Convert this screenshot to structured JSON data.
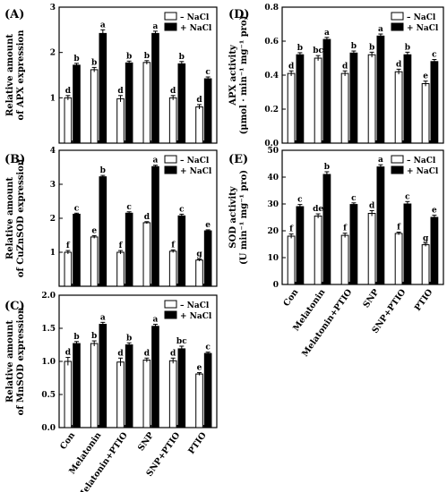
{
  "categories": [
    "Con",
    "Melatonin",
    "Melatonin+PTIO",
    "SNP",
    "SNP+PTIO",
    "PTIO"
  ],
  "legend": {
    "minus": "– NaCl",
    "plus": "+ NaCl"
  },
  "colors": {
    "minus": "#ffffff",
    "plus": "#000000",
    "stroke": "#000000"
  },
  "chart_data": [
    {
      "type": "bar",
      "panel_label": "(A)",
      "ylabel_lines": [
        "Relative amount",
        "of APX expression"
      ],
      "ylim": [
        0,
        3
      ],
      "yticks": [
        1,
        2,
        3
      ],
      "categories": [
        "Con",
        "Melatonin",
        "Melatonin+PTIO",
        "SNP",
        "SNP+PTIO",
        "PTIO"
      ],
      "series": [
        {
          "name": "– NaCl",
          "values": [
            1.0,
            1.62,
            0.98,
            1.78,
            1.0,
            0.8
          ],
          "errors": [
            0.05,
            0.05,
            0.07,
            0.04,
            0.05,
            0.05
          ],
          "letters": [
            "d",
            "b",
            "d",
            "b",
            "d",
            "d"
          ]
        },
        {
          "name": "+ NaCl",
          "values": [
            1.72,
            2.42,
            1.77,
            2.42,
            1.75,
            1.42
          ],
          "errors": [
            0.04,
            0.08,
            0.04,
            0.05,
            0.05,
            0.04
          ],
          "letters": [
            "b",
            "a",
            "b",
            "a",
            "b",
            "c"
          ]
        }
      ],
      "legend_position": "top-right"
    },
    {
      "type": "bar",
      "panel_label": "(B)",
      "ylabel_lines": [
        "Relative amount",
        "of CuZnSOD expression"
      ],
      "ylim": [
        0,
        4
      ],
      "yticks": [
        1,
        2,
        3,
        4
      ],
      "categories": [
        "Con",
        "Melatonin",
        "Melatonin+PTIO",
        "SNP",
        "SNP+PTIO",
        "PTIO"
      ],
      "series": [
        {
          "name": "– NaCl",
          "values": [
            1.0,
            1.45,
            1.0,
            1.87,
            1.03,
            0.77
          ],
          "errors": [
            0.05,
            0.04,
            0.05,
            0.03,
            0.04,
            0.03
          ],
          "letters": [
            "f",
            "e",
            "f",
            "d",
            "f",
            "g"
          ]
        },
        {
          "name": "+ NaCl",
          "values": [
            2.12,
            3.22,
            2.15,
            3.52,
            2.07,
            1.63
          ],
          "errors": [
            0.03,
            0.04,
            0.04,
            0.04,
            0.05,
            0.03
          ],
          "letters": [
            "c",
            "b",
            "c",
            "a",
            "c",
            "e"
          ]
        }
      ],
      "legend_position": "top-right"
    },
    {
      "type": "bar",
      "panel_label": "(C)",
      "ylabel_lines": [
        "Relative amount",
        "of MnSOD expression"
      ],
      "ylim": [
        0,
        2.0
      ],
      "yticks": [
        "0.0",
        "0.5",
        "1.0",
        "1.5",
        "2.0"
      ],
      "categories": [
        "Con",
        "Melatonin",
        "Melatonin+PTIO",
        "SNP",
        "SNP+PTIO",
        "PTIO"
      ],
      "series": [
        {
          "name": "– NaCl",
          "values": [
            1.0,
            1.27,
            0.99,
            1.02,
            1.01,
            0.81
          ],
          "errors": [
            0.06,
            0.04,
            0.06,
            0.03,
            0.04,
            0.02
          ],
          "letters": [
            "d",
            "b",
            "d",
            "d",
            "d",
            "e"
          ]
        },
        {
          "name": "+ NaCl",
          "values": [
            1.27,
            1.56,
            1.25,
            1.53,
            1.19,
            1.12
          ],
          "errors": [
            0.03,
            0.03,
            0.03,
            0.03,
            0.04,
            0.02
          ],
          "letters": [
            "b",
            "a",
            "b",
            "a",
            "bc",
            "c"
          ]
        }
      ],
      "legend_position": "top-right"
    },
    {
      "type": "bar",
      "panel_label": "(D)",
      "ylabel_lines": [
        "APX activity",
        "(μmol · min⁻¹ mg⁻¹ pro)"
      ],
      "ylim": [
        0,
        0.8
      ],
      "yticks": [
        "0.0",
        "0.2",
        "0.4",
        "0.6",
        "0.8"
      ],
      "categories": [
        "Con",
        "Melatonin",
        "Melatonin+PTIO",
        "SNP",
        "SNP+PTIO",
        "PTIO"
      ],
      "series": [
        {
          "name": "– NaCl",
          "values": [
            0.41,
            0.5,
            0.41,
            0.52,
            0.42,
            0.35
          ],
          "errors": [
            0.015,
            0.015,
            0.015,
            0.015,
            0.015,
            0.015
          ],
          "letters": [
            "d",
            "bc",
            "d",
            "b",
            "d",
            "e"
          ]
        },
        {
          "name": "+ NaCl",
          "values": [
            0.52,
            0.61,
            0.53,
            0.63,
            0.52,
            0.48
          ],
          "errors": [
            0.012,
            0.012,
            0.012,
            0.012,
            0.015,
            0.012
          ],
          "letters": [
            "b",
            "a",
            "b",
            "a",
            "b",
            "c"
          ]
        }
      ],
      "legend_position": "top-right"
    },
    {
      "type": "bar",
      "panel_label": "(E)",
      "ylabel_lines": [
        "SOD activity",
        "(U min⁻¹ mg⁻¹ pro)"
      ],
      "ylim": [
        0,
        50
      ],
      "yticks": [
        "0",
        "10",
        "20",
        "30",
        "40",
        "50"
      ],
      "categories": [
        "Con",
        "Melatonin",
        "Melatonin+PTIO",
        "SNP",
        "SNP+PTIO",
        "PTIO"
      ],
      "series": [
        {
          "name": "– NaCl",
          "values": [
            18,
            25.5,
            18.3,
            26.5,
            19,
            14.8
          ],
          "errors": [
            0.8,
            0.8,
            0.8,
            1.0,
            0.5,
            0.6
          ],
          "letters": [
            "f",
            "de",
            "f",
            "d",
            "f",
            "g"
          ]
        },
        {
          "name": "+ NaCl",
          "values": [
            29,
            41,
            29.8,
            43.8,
            30,
            25
          ],
          "errors": [
            0.8,
            1.0,
            0.6,
            0.8,
            0.9,
            0.8
          ],
          "letters": [
            "c",
            "b",
            "c",
            "a",
            "c",
            "e"
          ]
        }
      ],
      "legend_position": "top-right"
    }
  ]
}
